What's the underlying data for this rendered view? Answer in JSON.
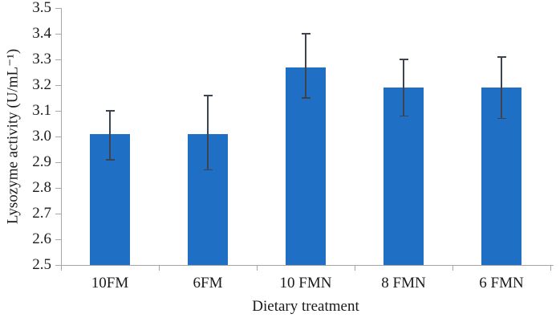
{
  "chart_data": {
    "type": "bar",
    "categories": [
      "10FM",
      "6FM",
      "10 FMN",
      "8 FMN",
      "6 FMN"
    ],
    "values": [
      3.01,
      3.01,
      3.27,
      3.19,
      3.19
    ],
    "error_high": [
      3.1,
      3.16,
      3.4,
      3.3,
      3.31
    ],
    "error_low": [
      2.91,
      2.87,
      3.15,
      3.08,
      3.07
    ],
    "title": "",
    "xlabel": "Dietary treatment",
    "ylabel": "Lysozyme activity (U/mL⁻¹)",
    "ylim": [
      2.5,
      3.5
    ],
    "ytick_step": 0.1,
    "yticks": [
      "2.5",
      "2.6",
      "2.7",
      "2.8",
      "2.9",
      "3.0",
      "3.1",
      "3.2",
      "3.3",
      "3.4",
      "3.5"
    ],
    "grid": false,
    "legend": false,
    "colors": {
      "bar_fill": "#1f6fc5",
      "error_bar": "#3d4450",
      "axis": "#a6a6a6",
      "text": "#1a1a1a",
      "background": "#ffffff"
    }
  }
}
